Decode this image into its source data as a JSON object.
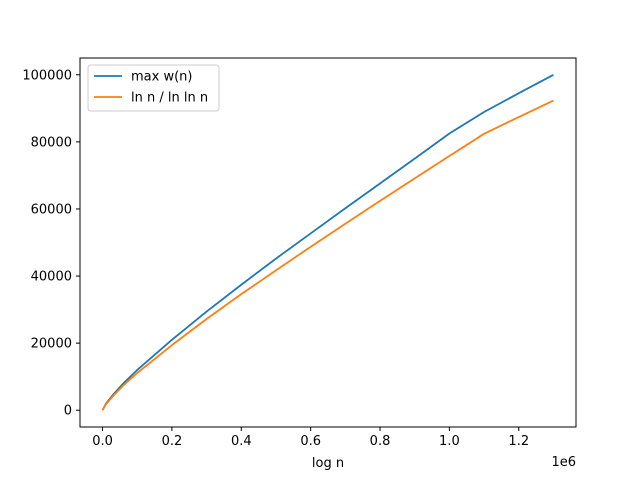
{
  "chart_data": {
    "type": "line",
    "title": "",
    "xlabel": "log n",
    "ylabel": "",
    "x_offset_label": "1e6",
    "xlim": [
      -65000,
      1365000
    ],
    "ylim": [
      -5000,
      105000
    ],
    "x_ticks": [
      0,
      200000,
      400000,
      600000,
      800000,
      1000000,
      1200000
    ],
    "x_tick_labels": [
      "0.0",
      "0.2",
      "0.4",
      "0.6",
      "0.8",
      "1.0",
      "1.2"
    ],
    "y_ticks": [
      0,
      20000,
      40000,
      60000,
      80000,
      100000
    ],
    "y_tick_labels": [
      "0",
      "20000",
      "40000",
      "60000",
      "80000",
      "100000"
    ],
    "grid": false,
    "legend_position": "upper-left",
    "series": [
      {
        "name": "max w(n)",
        "color": "#1f77b4",
        "x": [
          0,
          10000,
          30000,
          60000,
          100000,
          200000,
          300000,
          400000,
          500000,
          600000,
          700000,
          800000,
          900000,
          1000000,
          1100000,
          1200000,
          1300000
        ],
        "y": [
          0,
          2000,
          4600,
          8000,
          12000,
          21000,
          29400,
          37400,
          45200,
          52700,
          60200,
          67600,
          75000,
          82500,
          88900,
          94500,
          100000
        ]
      },
      {
        "name": "ln n / ln ln n",
        "color": "#ff7f0e",
        "x": [
          0,
          10000,
          30000,
          60000,
          100000,
          200000,
          300000,
          400000,
          500000,
          600000,
          700000,
          800000,
          900000,
          1000000,
          1100000,
          1200000,
          1300000
        ],
        "y": [
          0,
          1800,
          4200,
          7400,
          11100,
          19400,
          27200,
          34600,
          41700,
          48700,
          55600,
          62400,
          69100,
          75800,
          82400,
          87400,
          92300
        ]
      }
    ]
  }
}
